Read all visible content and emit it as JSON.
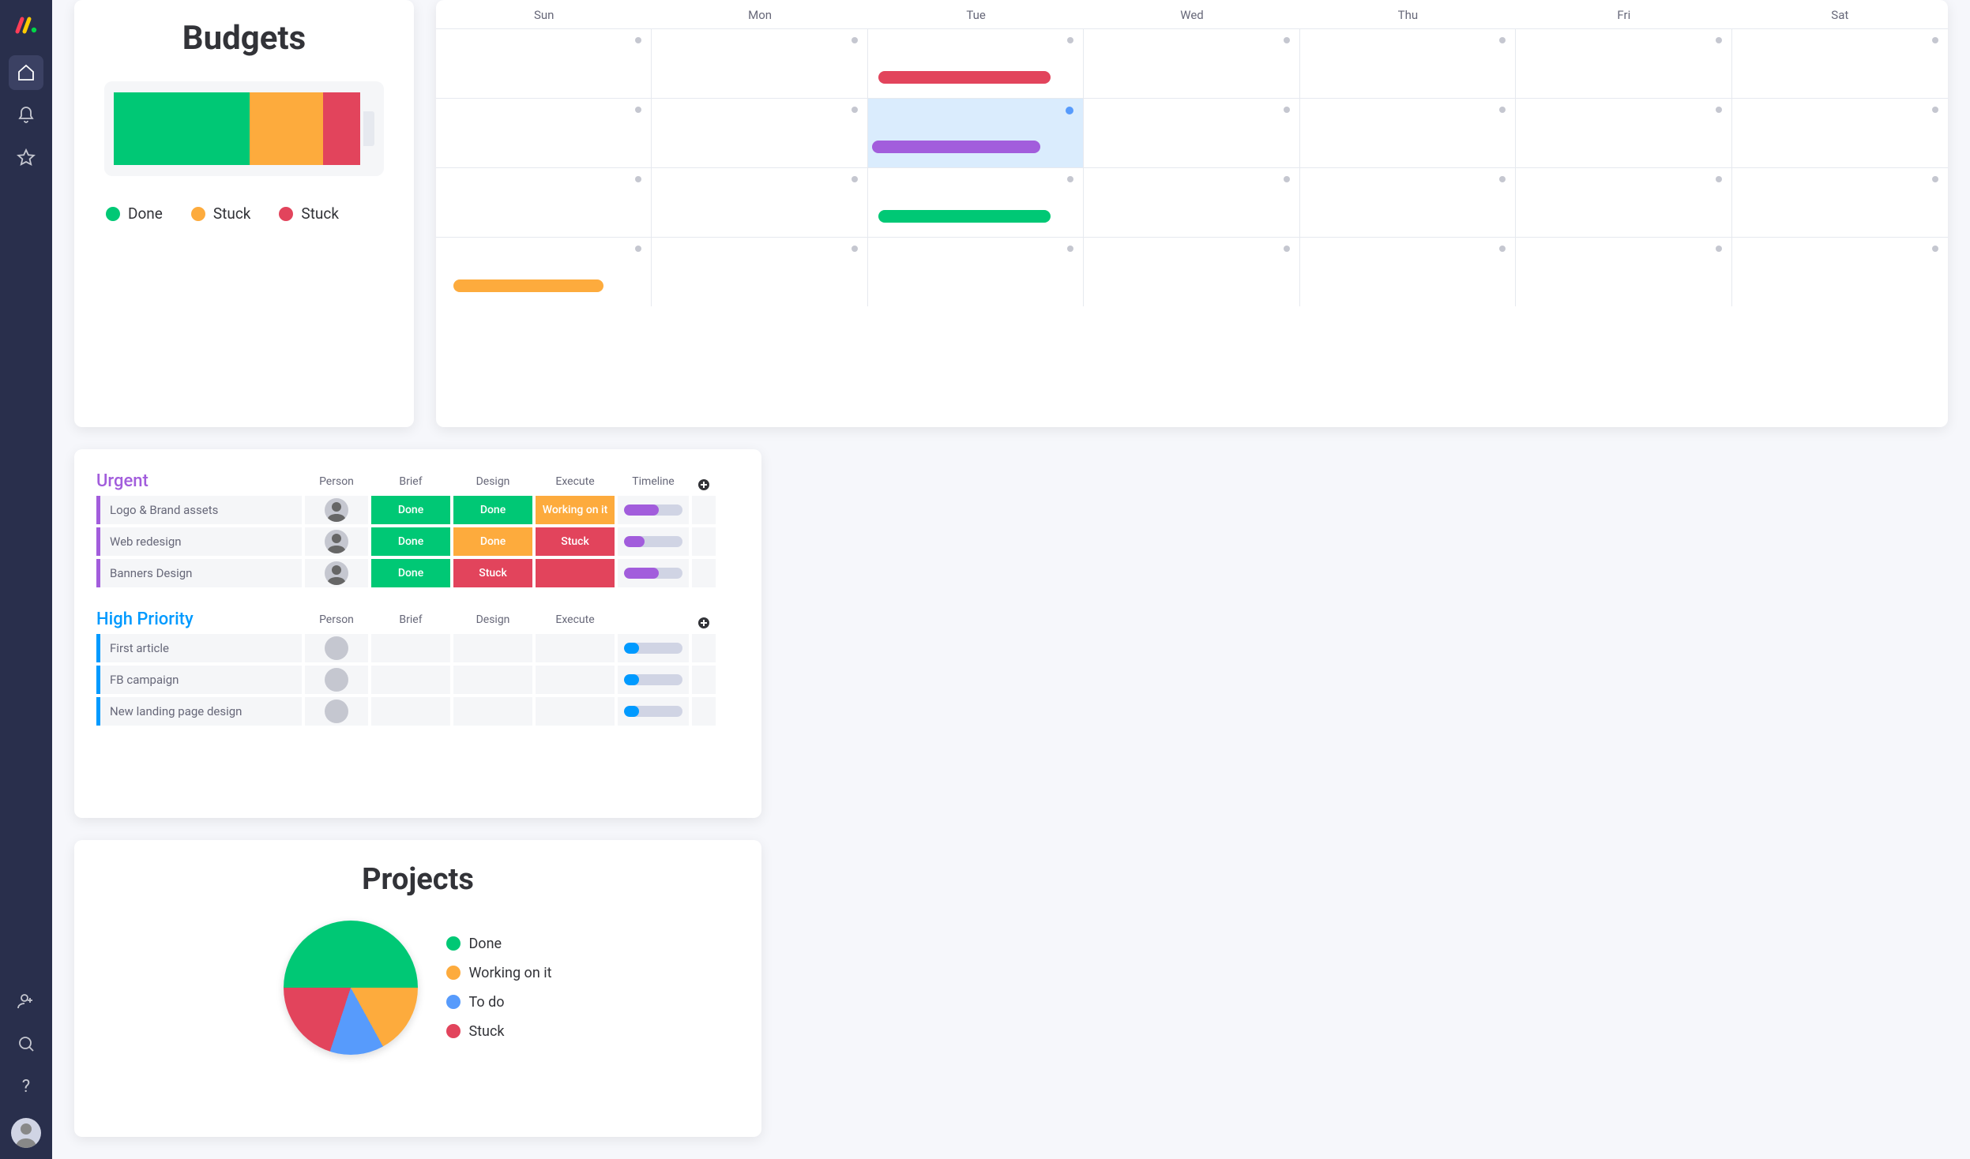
{
  "colors": {
    "green": "#00c875",
    "orange": "#fdab3d",
    "red": "#e2445c",
    "purple": "#a25ddc",
    "blue": "#579bfc",
    "lightblue": "#009aff",
    "gray": "#c5c7d0",
    "cell_bg": "#f5f6f8",
    "sidebar": "#292f4c",
    "sidebar_active": "#3b4163",
    "text": "#323338",
    "text_muted": "#676879"
  },
  "budgets": {
    "title": "Budgets",
    "battery": {
      "segments": [
        {
          "color": "#00c875",
          "pct": 55
        },
        {
          "color": "#fdab3d",
          "pct": 30
        },
        {
          "color": "#e2445c",
          "pct": 15
        }
      ]
    },
    "legend": [
      {
        "label": "Done",
        "color": "#00c875"
      },
      {
        "label": "Stuck",
        "color": "#fdab3d"
      },
      {
        "label": "Stuck",
        "color": "#e2445c"
      }
    ]
  },
  "calendar": {
    "days": [
      "Sun",
      "Mon",
      "Tue",
      "Wed",
      "Thu",
      "Fri",
      "Sat"
    ],
    "rows": 4,
    "highlight": {
      "row": 1,
      "col": 2
    },
    "bars": [
      {
        "row": 0,
        "col_start": 2,
        "col_span": 1,
        "color": "#e2445c",
        "left_pct": 5,
        "width_pct": 80
      },
      {
        "row": 1,
        "col_start": 2,
        "col_span": 1,
        "color": "#a25ddc",
        "left_pct": 2,
        "width_pct": 78
      },
      {
        "row": 2,
        "col_start": 2,
        "col_span": 1,
        "color": "#00c875",
        "left_pct": 5,
        "width_pct": 80
      },
      {
        "row": 3,
        "col_start": 0,
        "col_span": 1,
        "color": "#fdab3d",
        "left_pct": 8,
        "width_pct": 70
      }
    ],
    "blue_dot": {
      "row": 1,
      "col": 2
    }
  },
  "tasks": {
    "columns": [
      "Person",
      "Brief",
      "Design",
      "Execute",
      "Timeline"
    ],
    "groups": [
      {
        "title": "Urgent",
        "color": "#a25ddc",
        "show_timeline_header": true,
        "rows": [
          {
            "name": "Logo & Brand assets",
            "person": true,
            "cells": [
              {
                "label": "Done",
                "bg": "#00c875"
              },
              {
                "label": "Done",
                "bg": "#00c875"
              },
              {
                "label": "Working on it",
                "bg": "#fdab3d"
              }
            ],
            "timeline": {
              "fill": 60,
              "color": "#a25ddc"
            }
          },
          {
            "name": "Web redesign",
            "person": true,
            "cells": [
              {
                "label": "Done",
                "bg": "#00c875"
              },
              {
                "label": "Done",
                "bg": "#fdab3d"
              },
              {
                "label": "Stuck",
                "bg": "#e2445c"
              }
            ],
            "timeline": {
              "fill": 35,
              "color": "#a25ddc"
            }
          },
          {
            "name": "Banners Design",
            "person": true,
            "cells": [
              {
                "label": "Done",
                "bg": "#00c875"
              },
              {
                "label": "Stuck",
                "bg": "#e2445c"
              },
              {
                "label": "",
                "bg": "#e2445c"
              }
            ],
            "timeline": {
              "fill": 60,
              "color": "#a25ddc"
            }
          }
        ]
      },
      {
        "title": "High Priority",
        "color": "#009aff",
        "show_timeline_header": false,
        "rows": [
          {
            "name": "First article",
            "person": false,
            "cells": [
              {
                "label": "",
                "bg": "#f5f6f8"
              },
              {
                "label": "",
                "bg": "#f5f6f8"
              },
              {
                "label": "",
                "bg": "#f5f6f8"
              }
            ],
            "timeline": {
              "fill": 25,
              "color": "#009aff"
            }
          },
          {
            "name": "FB campaign",
            "person": false,
            "cells": [
              {
                "label": "",
                "bg": "#f5f6f8"
              },
              {
                "label": "",
                "bg": "#f5f6f8"
              },
              {
                "label": "",
                "bg": "#f5f6f8"
              }
            ],
            "timeline": {
              "fill": 25,
              "color": "#009aff"
            }
          },
          {
            "name": "New landing page design",
            "person": false,
            "cells": [
              {
                "label": "",
                "bg": "#f5f6f8"
              },
              {
                "label": "",
                "bg": "#f5f6f8"
              },
              {
                "label": "",
                "bg": "#f5f6f8"
              }
            ],
            "timeline": {
              "fill": 25,
              "color": "#009aff"
            }
          }
        ]
      }
    ]
  },
  "projects": {
    "title": "Projects",
    "slices": [
      {
        "label": "Done",
        "color": "#00c875",
        "pct": 50
      },
      {
        "label": "Working on it",
        "color": "#fdab3d",
        "pct": 17
      },
      {
        "label": "To do",
        "color": "#579bfc",
        "pct": 13
      },
      {
        "label": "Stuck",
        "color": "#e2445c",
        "pct": 20
      }
    ]
  }
}
